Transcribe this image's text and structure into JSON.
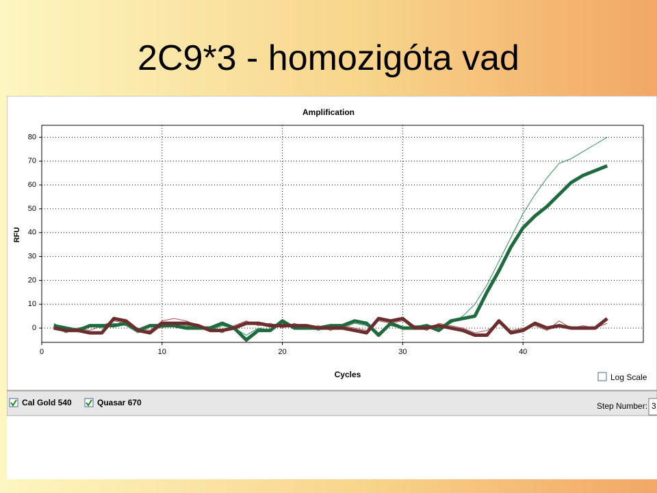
{
  "slide_title": "2C9*3 - homozigóta vad",
  "chart_data": {
    "type": "line",
    "title": "Amplification",
    "x_label": "Cycles",
    "y_label": "RFU",
    "x": [
      1,
      2,
      3,
      4,
      5,
      6,
      7,
      8,
      9,
      10,
      11,
      12,
      13,
      14,
      15,
      16,
      17,
      18,
      19,
      20,
      21,
      22,
      23,
      24,
      25,
      26,
      27,
      28,
      29,
      30,
      31,
      32,
      33,
      34,
      35,
      36,
      37,
      38,
      39,
      40,
      41,
      42,
      43,
      44,
      45,
      46,
      47
    ],
    "series": [
      {
        "name": "Quasar 670",
        "color": "#2e8b57",
        "width": 1,
        "values": [
          2,
          -1,
          0,
          1,
          0,
          2,
          1,
          -2,
          1,
          0,
          2,
          1,
          0,
          -1,
          1,
          0,
          -3,
          0,
          -1,
          2,
          0,
          1,
          -1,
          1,
          0,
          2,
          1,
          -2,
          1,
          0,
          1,
          1,
          0,
          2,
          5,
          10,
          18,
          28,
          38,
          48,
          56,
          63,
          69,
          71,
          74,
          77,
          80
        ]
      },
      {
        "name": "Cal Gold 540",
        "color": "#a0524d",
        "width": 1,
        "values": [
          1,
          -2,
          0,
          -1,
          1,
          3,
          2,
          0,
          -1,
          3,
          4,
          3,
          1,
          0,
          -2,
          1,
          3,
          1,
          2,
          0,
          2,
          0,
          1,
          -1,
          1,
          0,
          -1,
          3,
          2,
          3,
          1,
          -1,
          2,
          1,
          0,
          -2,
          -1,
          2,
          -1,
          0,
          1,
          -1,
          3,
          0,
          1,
          0,
          2
        ]
      },
      {
        "name": "Quasar 670",
        "color": "#1f6b3f",
        "width": 5,
        "values": [
          1,
          0,
          -1,
          1,
          1,
          1,
          2,
          -1,
          1,
          1,
          1,
          0,
          0,
          0,
          2,
          0,
          -5,
          -1,
          -1,
          3,
          0,
          0,
          0,
          1,
          1,
          3,
          2,
          -3,
          2,
          0,
          0,
          1,
          -1,
          3,
          4,
          5,
          15,
          24,
          34,
          42,
          47,
          51,
          56,
          61,
          64,
          66,
          68
        ]
      },
      {
        "name": "Cal Gold 540",
        "color": "#6b2e2e",
        "width": 5,
        "values": [
          0,
          -1,
          -1,
          -2,
          -2,
          4,
          3,
          -1,
          -2,
          2,
          2,
          2,
          1,
          -1,
          -1,
          0,
          2,
          2,
          1,
          1,
          1,
          1,
          0,
          0,
          0,
          -1,
          -2,
          4,
          3,
          4,
          0,
          0,
          1,
          0,
          -1,
          -3,
          -3,
          3,
          -2,
          -1,
          2,
          0,
          1,
          0,
          0,
          0,
          4
        ]
      }
    ],
    "xlim": [
      0,
      50
    ],
    "xticks": [
      0,
      10,
      20,
      30,
      40
    ],
    "ylim": [
      -6,
      85
    ],
    "yticks": [
      0,
      10,
      20,
      30,
      40,
      50,
      60,
      70,
      80
    ],
    "grid": true,
    "log_scale": false,
    "log_scale_label": "Log Scale"
  },
  "toolbar": {
    "step_label": "Step Number:",
    "step_value": "3"
  }
}
